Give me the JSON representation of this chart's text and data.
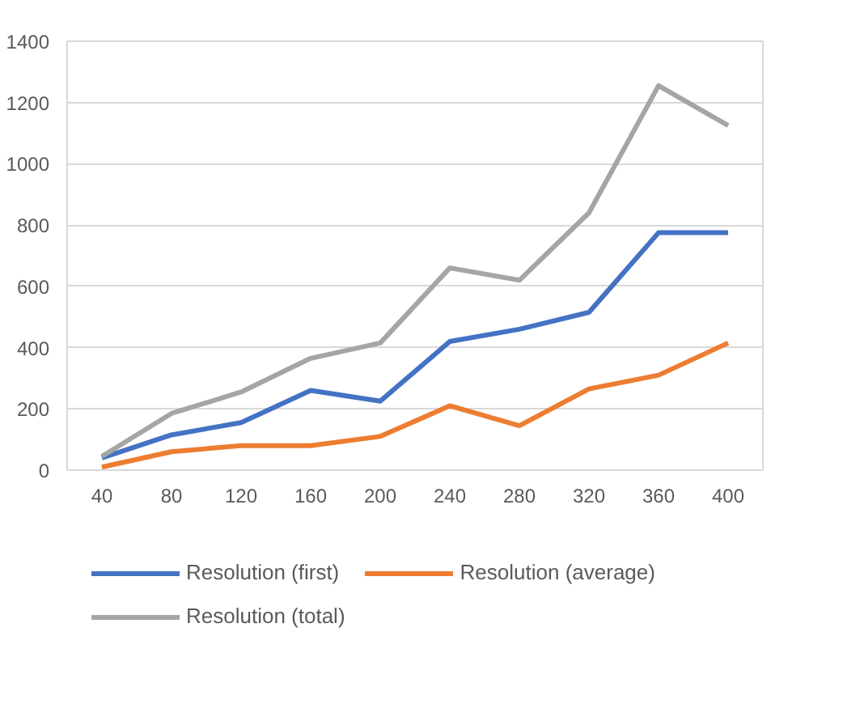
{
  "chart_data": {
    "type": "line",
    "categories": [
      "40",
      "80",
      "120",
      "160",
      "200",
      "240",
      "280",
      "320",
      "360",
      "400"
    ],
    "series": [
      {
        "name": "Resolution (first)",
        "color": "#4472c4",
        "values": [
          40,
          115,
          155,
          260,
          225,
          420,
          460,
          515,
          775,
          775
        ]
      },
      {
        "name": "Resolution (average)",
        "color": "#ed7d31",
        "values": [
          10,
          60,
          80,
          80,
          110,
          210,
          145,
          265,
          310,
          415
        ]
      },
      {
        "name": "Resolution (total)",
        "color": "#a5a5a5",
        "values": [
          45,
          185,
          255,
          365,
          415,
          660,
          620,
          840,
          1255,
          1125
        ]
      }
    ],
    "ylim": [
      0,
      1400
    ],
    "yticks": [
      0,
      200,
      400,
      600,
      800,
      1000,
      1200,
      1400
    ],
    "grid": "y",
    "legend": "bottom",
    "marker": "none",
    "line_style": "solid"
  }
}
